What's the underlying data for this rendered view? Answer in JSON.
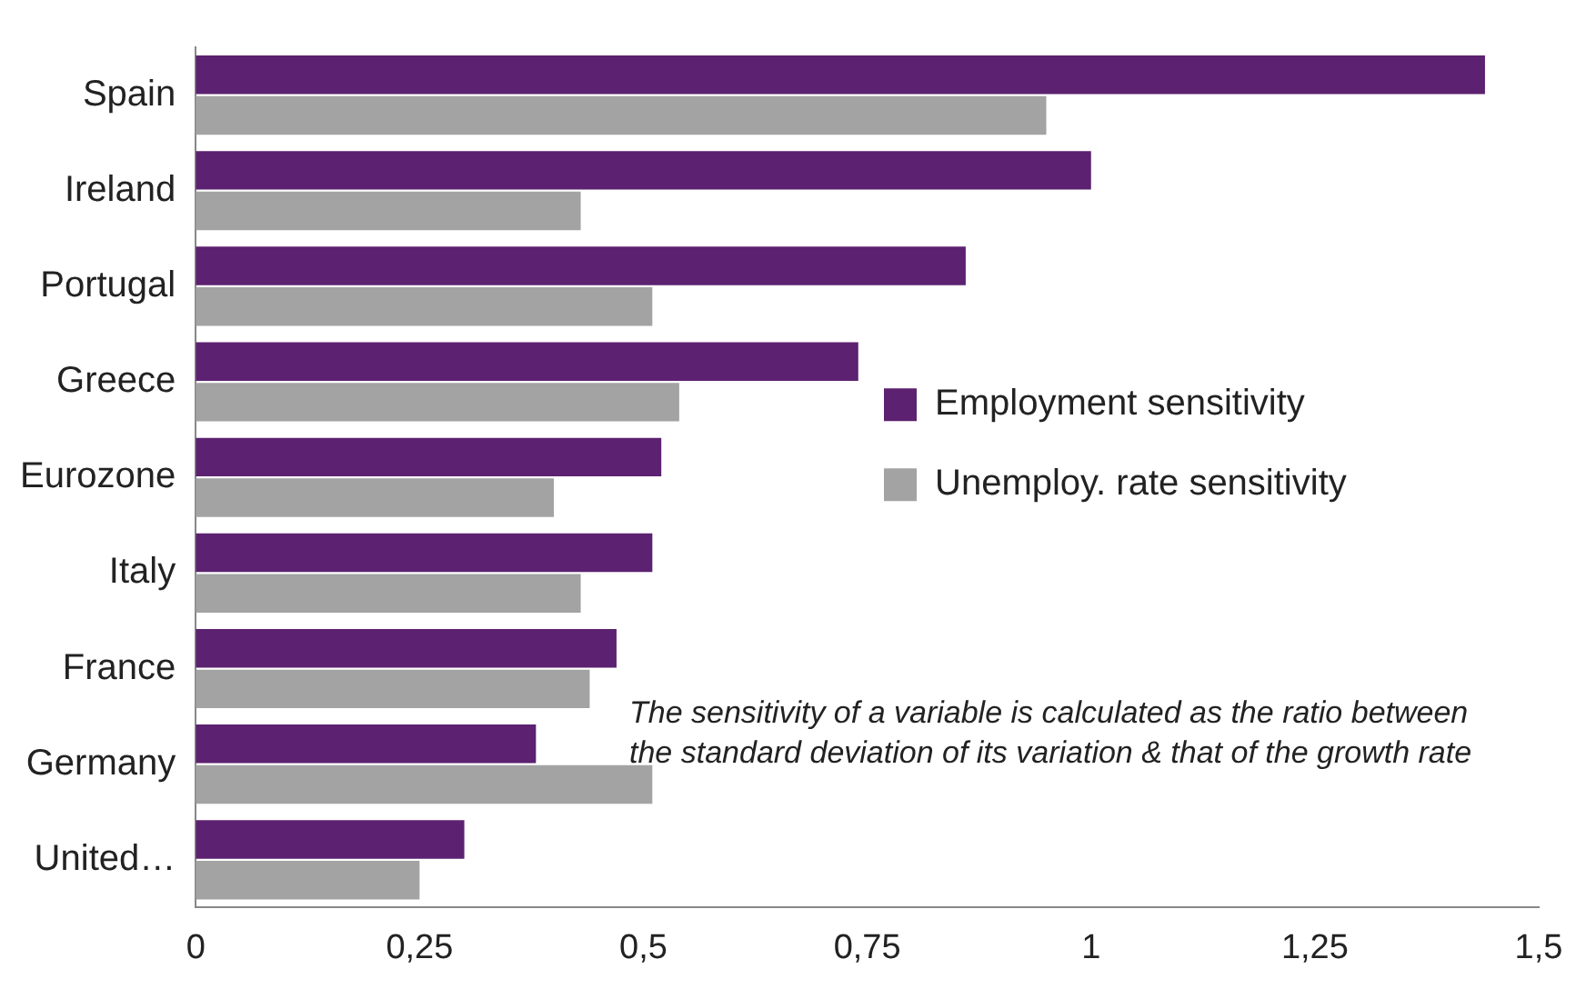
{
  "chart_data": {
    "type": "bar",
    "orientation": "horizontal",
    "categories": [
      "Spain",
      "Ireland",
      "Portugal",
      "Greece",
      "Eurozone",
      "Italy",
      "France",
      "Germany",
      "United…"
    ],
    "series": [
      {
        "name": "Employment sensitivity",
        "color": "#5c2170",
        "values": [
          1.44,
          1.0,
          0.86,
          0.74,
          0.52,
          0.51,
          0.47,
          0.38,
          0.3
        ]
      },
      {
        "name": "Unemploy. rate sensitivity",
        "color": "#a3a3a3",
        "values": [
          0.95,
          0.43,
          0.51,
          0.54,
          0.4,
          0.43,
          0.44,
          0.51,
          0.25
        ]
      }
    ],
    "xlim": [
      0,
      1.5
    ],
    "xticks": [
      0,
      {
        "value": 0.25,
        "label": "0,25"
      },
      {
        "value": 0.5,
        "label": "0,5"
      },
      {
        "value": 0.75,
        "label": "0,75"
      },
      1,
      {
        "value": 1.25,
        "label": "1,25"
      },
      {
        "value": 1.5,
        "label": "1,5"
      }
    ],
    "grid": false,
    "legend": "right",
    "annotations": [
      "The sensitivity of a variable is calculated as the ratio between the standard deviation of its variation & that of the growth rate"
    ]
  }
}
